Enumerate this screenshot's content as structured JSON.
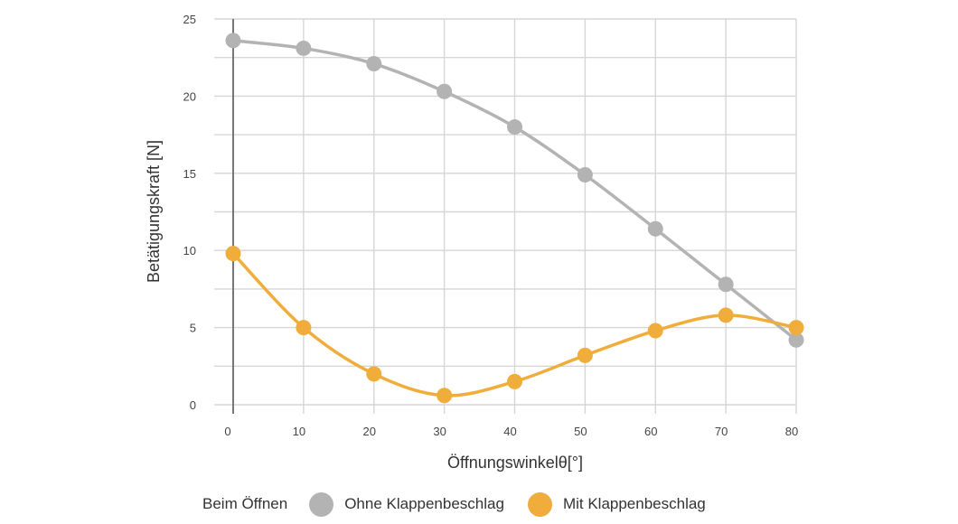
{
  "chart_data": {
    "type": "line",
    "xlabel": "Öffnungswinkelθ[°]",
    "ylabel": "Betätigungskraft [N]",
    "xlim": [
      0,
      80
    ],
    "ylim": [
      0,
      25
    ],
    "x_ticks": [
      0,
      10,
      20,
      30,
      40,
      50,
      60,
      70,
      80
    ],
    "y_ticks": [
      0,
      5,
      10,
      15,
      20,
      25
    ],
    "grid": true,
    "legend_position": "bottom",
    "legend_title": "Beim Öffnen",
    "x": [
      0,
      10,
      20,
      30,
      40,
      50,
      60,
      70,
      80
    ],
    "series": [
      {
        "name": "Ohne Klappenbeschlag",
        "color": "#b3b3b3",
        "values": [
          23.6,
          23.1,
          22.1,
          20.3,
          18.0,
          14.9,
          11.4,
          7.8,
          4.2
        ]
      },
      {
        "name": "Mit  Klappenbeschlag",
        "color": "#f0ad3c",
        "values": [
          9.8,
          5.0,
          2.0,
          0.6,
          1.5,
          3.2,
          4.8,
          5.8,
          5.0
        ]
      }
    ]
  }
}
